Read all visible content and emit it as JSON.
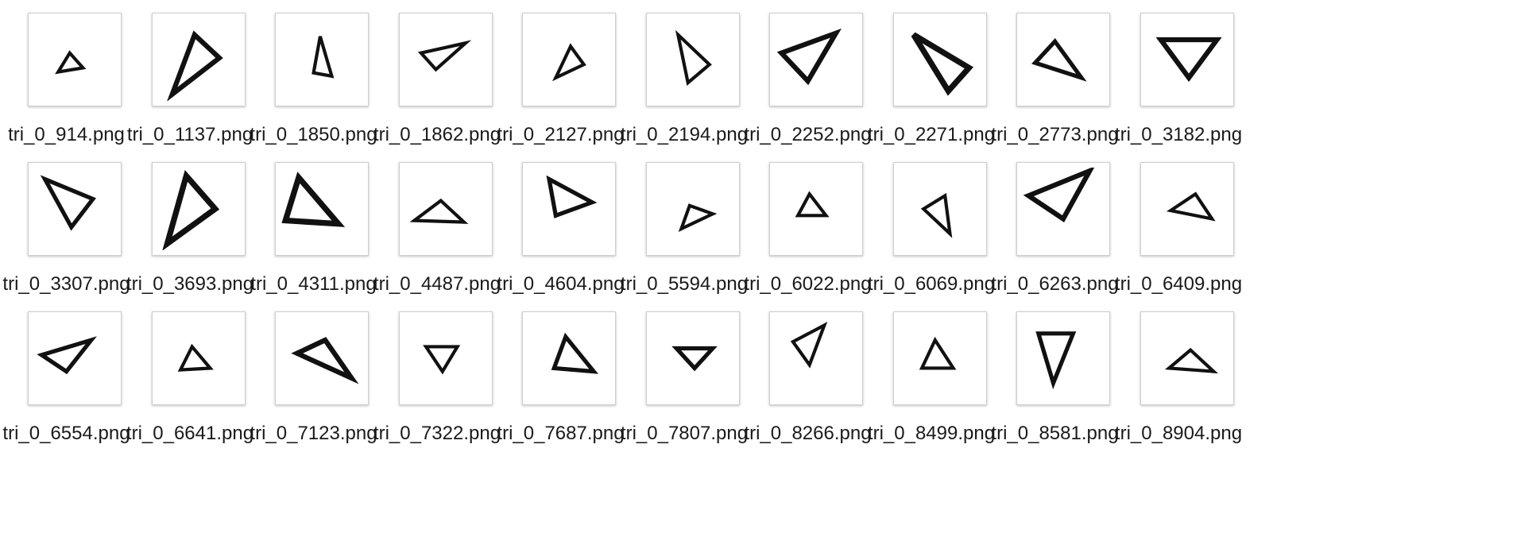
{
  "files": [
    {
      "name": "tri_0_914.png",
      "icon": "triangle-thumbnail-icon"
    },
    {
      "name": "tri_0_1137.png",
      "icon": "triangle-thumbnail-icon"
    },
    {
      "name": "tri_0_1850.png",
      "icon": "triangle-thumbnail-icon"
    },
    {
      "name": "tri_0_1862.png",
      "icon": "triangle-thumbnail-icon"
    },
    {
      "name": "tri_0_2127.png",
      "icon": "triangle-thumbnail-icon"
    },
    {
      "name": "tri_0_2194.png",
      "icon": "triangle-thumbnail-icon"
    },
    {
      "name": "tri_0_2252.png",
      "icon": "triangle-thumbnail-icon"
    },
    {
      "name": "tri_0_2271.png",
      "icon": "triangle-thumbnail-icon"
    },
    {
      "name": "tri_0_2773.png",
      "icon": "triangle-thumbnail-icon"
    },
    {
      "name": "tri_0_3182.png",
      "icon": "triangle-thumbnail-icon"
    },
    {
      "name": "tri_0_3307.png",
      "icon": "triangle-thumbnail-icon"
    },
    {
      "name": "tri_0_3693.png",
      "icon": "triangle-thumbnail-icon"
    },
    {
      "name": "tri_0_4311.png",
      "icon": "triangle-thumbnail-icon"
    },
    {
      "name": "tri_0_4487.png",
      "icon": "triangle-thumbnail-icon"
    },
    {
      "name": "tri_0_4604.png",
      "icon": "triangle-thumbnail-icon"
    },
    {
      "name": "tri_0_5594.png",
      "icon": "triangle-thumbnail-icon"
    },
    {
      "name": "tri_0_6022.png",
      "icon": "triangle-thumbnail-icon"
    },
    {
      "name": "tri_0_6069.png",
      "icon": "triangle-thumbnail-icon"
    },
    {
      "name": "tri_0_6263.png",
      "icon": "triangle-thumbnail-icon"
    },
    {
      "name": "tri_0_6409.png",
      "icon": "triangle-thumbnail-icon"
    },
    {
      "name": "tri_0_6554.png",
      "icon": "triangle-thumbnail-icon"
    },
    {
      "name": "tri_0_6641.png",
      "icon": "triangle-thumbnail-icon"
    },
    {
      "name": "tri_0_7123.png",
      "icon": "triangle-thumbnail-icon"
    },
    {
      "name": "tri_0_7322.png",
      "icon": "triangle-thumbnail-icon"
    },
    {
      "name": "tri_0_7687.png",
      "icon": "triangle-thumbnail-icon"
    },
    {
      "name": "tri_0_7807.png",
      "icon": "triangle-thumbnail-icon"
    },
    {
      "name": "tri_0_8266.png",
      "icon": "triangle-thumbnail-icon"
    },
    {
      "name": "tri_0_8499.png",
      "icon": "triangle-thumbnail-icon"
    },
    {
      "name": "tri_0_8581.png",
      "icon": "triangle-thumbnail-icon"
    },
    {
      "name": "tri_0_8904.png",
      "icon": "triangle-thumbnail-icon"
    }
  ],
  "colors": {
    "background": "#ffffff",
    "thumbnail_border": "#cfcfcf",
    "shape_stroke": "#111111",
    "label_text": "#1a1a1a"
  }
}
